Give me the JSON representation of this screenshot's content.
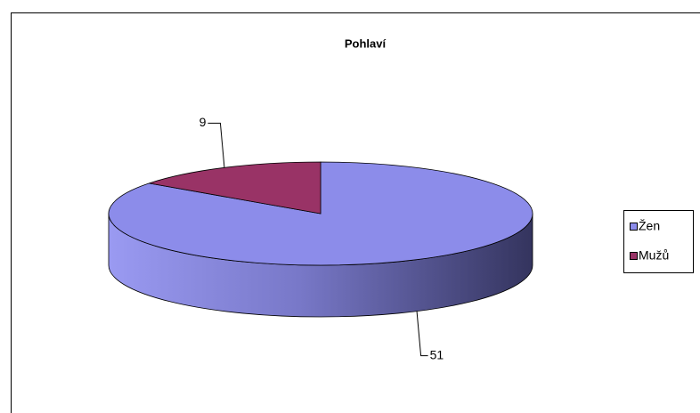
{
  "chart_data": {
    "type": "pie",
    "title": "Pohlaví",
    "categories": [
      "Žen",
      "Mužů"
    ],
    "values": [
      51,
      9
    ],
    "colors": [
      "#8c8cea",
      "#993366"
    ],
    "legend": "right"
  }
}
